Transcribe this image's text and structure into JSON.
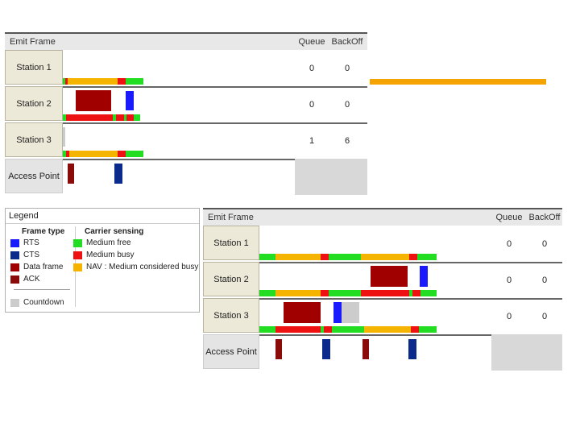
{
  "colors": {
    "rts": "#1a1aff",
    "cts": "#0a2a8c",
    "data_frame": "#a00000",
    "ack": "#8b0a0a",
    "countdown": "#cccccc",
    "medium_free": "#22dd22",
    "medium_busy": "#ee1111",
    "nav": "#f5b400",
    "orange_line": "#f5a300"
  },
  "panel1": {
    "header": {
      "title": "Emit Frame",
      "queue": "Queue",
      "backoff": "BackOff"
    },
    "rows": [
      {
        "label": "Station 1",
        "queue": "0",
        "backoff": "0"
      },
      {
        "label": "Station 2",
        "queue": "0",
        "backoff": "0"
      },
      {
        "label": "Station 3",
        "queue": "1",
        "backoff": "6"
      },
      {
        "label": "Access Point"
      }
    ]
  },
  "panel2": {
    "header": {
      "title": "Emit Frame",
      "queue": "Queue",
      "backoff": "BackOff"
    },
    "rows": [
      {
        "label": "Station 1",
        "queue": "0",
        "backoff": "0"
      },
      {
        "label": "Station 2",
        "queue": "0",
        "backoff": "0"
      },
      {
        "label": "Station 3",
        "queue": "0",
        "backoff": "0"
      },
      {
        "label": "Access Point"
      }
    ]
  },
  "legend": {
    "title": "Legend",
    "frame_type": {
      "heading": "Frame type",
      "items": [
        "RTS",
        "CTS",
        "Data frame",
        "ACK"
      ],
      "countdown": "Countdown"
    },
    "carrier_sensing": {
      "heading": "Carrier sensing",
      "items": [
        "Medium free",
        "Medium busy",
        "NAV : Medium considered busy"
      ]
    }
  }
}
